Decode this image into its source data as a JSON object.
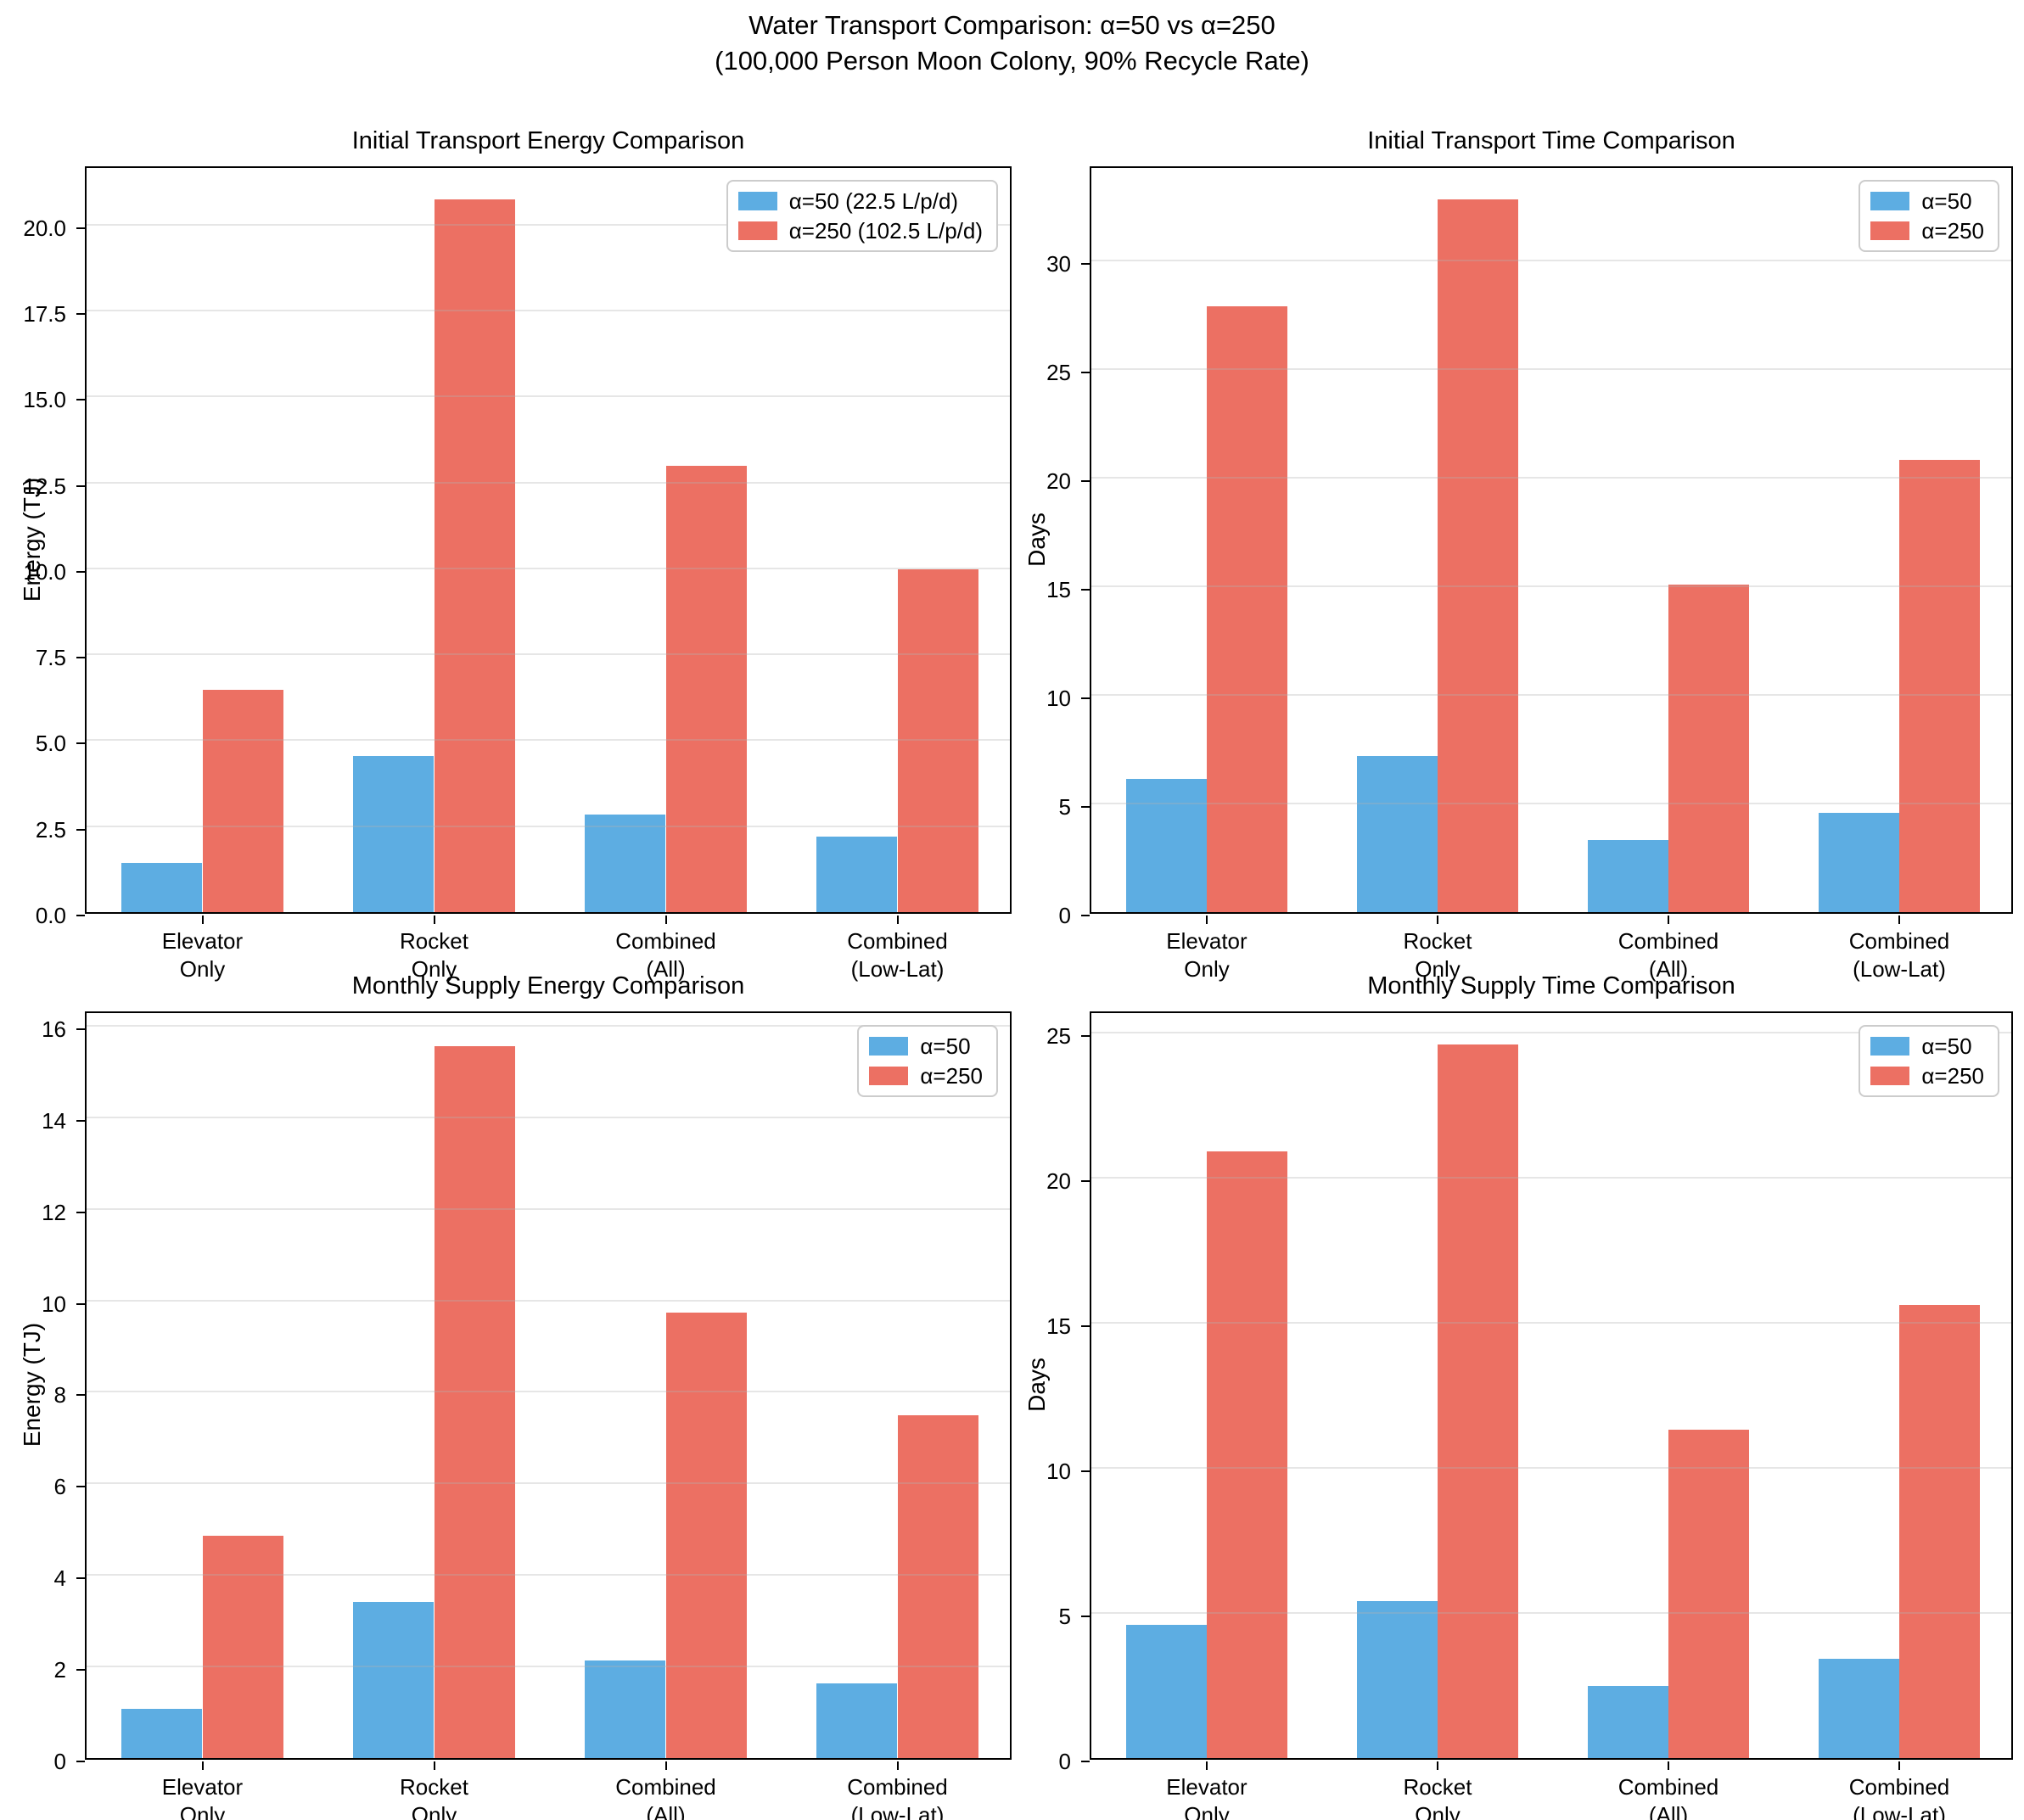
{
  "title": {
    "line1": "Water Transport Comparison: α=50 vs α=250",
    "line2": "(100,000 Person Moon Colony, 90% Recycle Rate)"
  },
  "colors": {
    "alpha50": "#5DADE2",
    "alpha250": "#EC7063",
    "grid": "#b0b0b0",
    "spine": "#000000"
  },
  "chart_data": [
    {
      "id": "initial-energy",
      "type": "bar",
      "title": "Initial Transport Energy Comparison",
      "ylabel": "Energy (TJ)",
      "xlabel": "",
      "categories": [
        "Elevator\nOnly",
        "Rocket\nOnly",
        "Combined\n(All)",
        "Combined\n(Low-Lat)"
      ],
      "series": [
        {
          "name": "α=50 (22.5 L/p/d)",
          "key": "alpha50",
          "color": "#5DADE2",
          "values": [
            1.42,
            4.55,
            2.85,
            2.19
          ]
        },
        {
          "name": "α=250 (102.5 L/p/d)",
          "key": "alpha250",
          "color": "#EC7063",
          "values": [
            6.47,
            20.73,
            12.98,
            9.98
          ]
        }
      ],
      "ylim": [
        0,
        21.75
      ],
      "yticks": [
        0,
        2.5,
        5,
        7.5,
        10,
        12.5,
        15,
        17.5,
        20
      ],
      "ytick_labels": [
        "0.0",
        "2.5",
        "5.0",
        "7.5",
        "10.0",
        "12.5",
        "15.0",
        "17.5",
        "20.0"
      ],
      "legend_position": "upper right",
      "grid": true
    },
    {
      "id": "initial-time",
      "type": "bar",
      "title": "Initial Transport Time Comparison",
      "ylabel": "Days",
      "xlabel": "",
      "categories": [
        "Elevator\nOnly",
        "Rocket\nOnly",
        "Combined\n(All)",
        "Combined\n(Low-Lat)"
      ],
      "series": [
        {
          "name": "α=50",
          "key": "alpha50",
          "color": "#5DADE2",
          "values": [
            6.12,
            7.2,
            3.31,
            4.57
          ]
        },
        {
          "name": "α=250",
          "key": "alpha250",
          "color": "#EC7063",
          "values": [
            27.88,
            32.8,
            15.08,
            20.82
          ]
        }
      ],
      "ylim": [
        0,
        34.4
      ],
      "yticks": [
        0,
        5,
        10,
        15,
        20,
        25,
        30
      ],
      "ytick_labels": [
        "0",
        "5",
        "10",
        "15",
        "20",
        "25",
        "30"
      ],
      "legend_position": "upper right",
      "grid": true
    },
    {
      "id": "monthly-energy",
      "type": "bar",
      "title": "Monthly Supply Energy Comparison",
      "ylabel": "Energy (TJ)",
      "xlabel": "",
      "categories": [
        "Elevator\nOnly",
        "Rocket\nOnly",
        "Combined\n(All)",
        "Combined\n(Low-Lat)"
      ],
      "series": [
        {
          "name": "α=50",
          "key": "alpha50",
          "color": "#5DADE2",
          "values": [
            1.07,
            3.41,
            2.14,
            1.64
          ]
        },
        {
          "name": "α=250",
          "key": "alpha250",
          "color": "#EC7063",
          "values": [
            4.85,
            15.55,
            9.74,
            7.49
          ]
        }
      ],
      "ylim": [
        0,
        16.35
      ],
      "yticks": [
        0,
        2,
        4,
        6,
        8,
        10,
        12,
        14,
        16
      ],
      "ytick_labels": [
        "0",
        "2",
        "4",
        "6",
        "8",
        "10",
        "12",
        "14",
        "16"
      ],
      "legend_position": "upper right",
      "grid": true
    },
    {
      "id": "monthly-time",
      "type": "bar",
      "title": "Monthly Supply Time Comparison",
      "ylabel": "Days",
      "xlabel": "",
      "categories": [
        "Elevator\nOnly",
        "Rocket\nOnly",
        "Combined\n(All)",
        "Combined\n(Low-Lat)"
      ],
      "series": [
        {
          "name": "α=50",
          "key": "alpha50",
          "color": "#5DADE2",
          "values": [
            4.59,
            5.4,
            2.48,
            3.43
          ]
        },
        {
          "name": "α=250",
          "key": "alpha250",
          "color": "#EC7063",
          "values": [
            20.91,
            24.6,
            11.31,
            15.62
          ]
        }
      ],
      "ylim": [
        0,
        25.8
      ],
      "yticks": [
        0,
        5,
        10,
        15,
        20,
        25
      ],
      "ytick_labels": [
        "0",
        "5",
        "10",
        "15",
        "20",
        "25"
      ],
      "legend_position": "upper right",
      "grid": true
    }
  ]
}
